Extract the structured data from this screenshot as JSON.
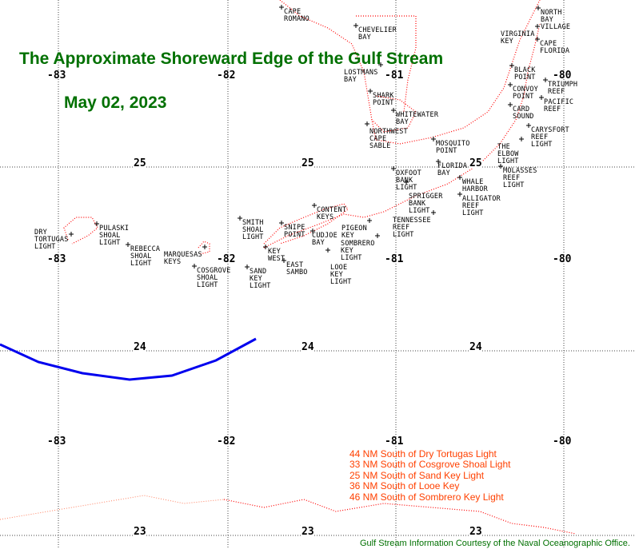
{
  "title": "The Approximate Shoreward Edge of the Gulf Stream",
  "date": "May 02, 2023",
  "longitude_labels": [
    "-83",
    "-82",
    "-81",
    "-80"
  ],
  "latitude_labels": [
    "25",
    "24",
    "23"
  ],
  "distances": [
    "44 NM South of Dry Tortugas Light",
    "33 NM South of Cosgrove Shoal Light",
    "25 NM South of Sand Key Light",
    "36 NM South of Looe Key",
    "46 NM South of Sombrero Key Light"
  ],
  "credit": "Gulf Stream Information Courtesy of the Naval Oceanographic Office.",
  "landmarks": [
    "CAPE\nROMANO",
    "CHEVELIER\nBAY",
    "LOSTMANS\nBAY",
    "SHARK\nPOINT",
    "WHITEWATER\nBAY",
    "NORTHWEST\nCAPE\nSABLE",
    "MOSQUITO\nPOINT",
    "NORTH\nBAY\nVILLAGE",
    "VIRGINIA\nKEY",
    "CAPE\nFLORIDA",
    "BLACK\nPOINT",
    "TRIUMPH\nREEF",
    "CONVOY\nPOINT",
    "PACIFIC\nREEF",
    "CARD\nSOUND",
    "CARYSFORT\nREEF\nLIGHT",
    "THE\nELBOW\nLIGHT",
    "MOLASSES\nREEF\nLIGHT",
    "FLORIDA\nBAY",
    "OXFOOT\nBANK\nLIGHT",
    "SPRIGGER\nBANK\nLIGHT",
    "WHALE\nHARBOR",
    "ALLIGATOR\nREEF\nLIGHT",
    "TENNESSEE\nREEF\nLIGHT",
    "PIGEON\nKEY",
    "SOMBRERO\nKEY\nLIGHT",
    "CONTENT\nKEYS",
    "SNIPE\nPOINT",
    "CUDJOE\nBAY",
    "KEY\nWEST",
    "EAST\nSAMBO",
    "LOOE\nKEY\nLIGHT",
    "SMITH\nSHOAL\nLIGHT",
    "MARQUESAS\nKEYS",
    "COSGROVE\nSHOAL\nLIGHT",
    "SAND\nKEY\nLIGHT",
    "REBECCA\nSHOAL\nLIGHT",
    "PULASKI\nSHOAL\nLIGHT",
    "DRY\nTORTUGAS\nLIGHT"
  ],
  "colors": {
    "title": "#007000",
    "gulf_stream": "#0000ee",
    "coast": "#ff0000",
    "distances": "#ff4000"
  }
}
